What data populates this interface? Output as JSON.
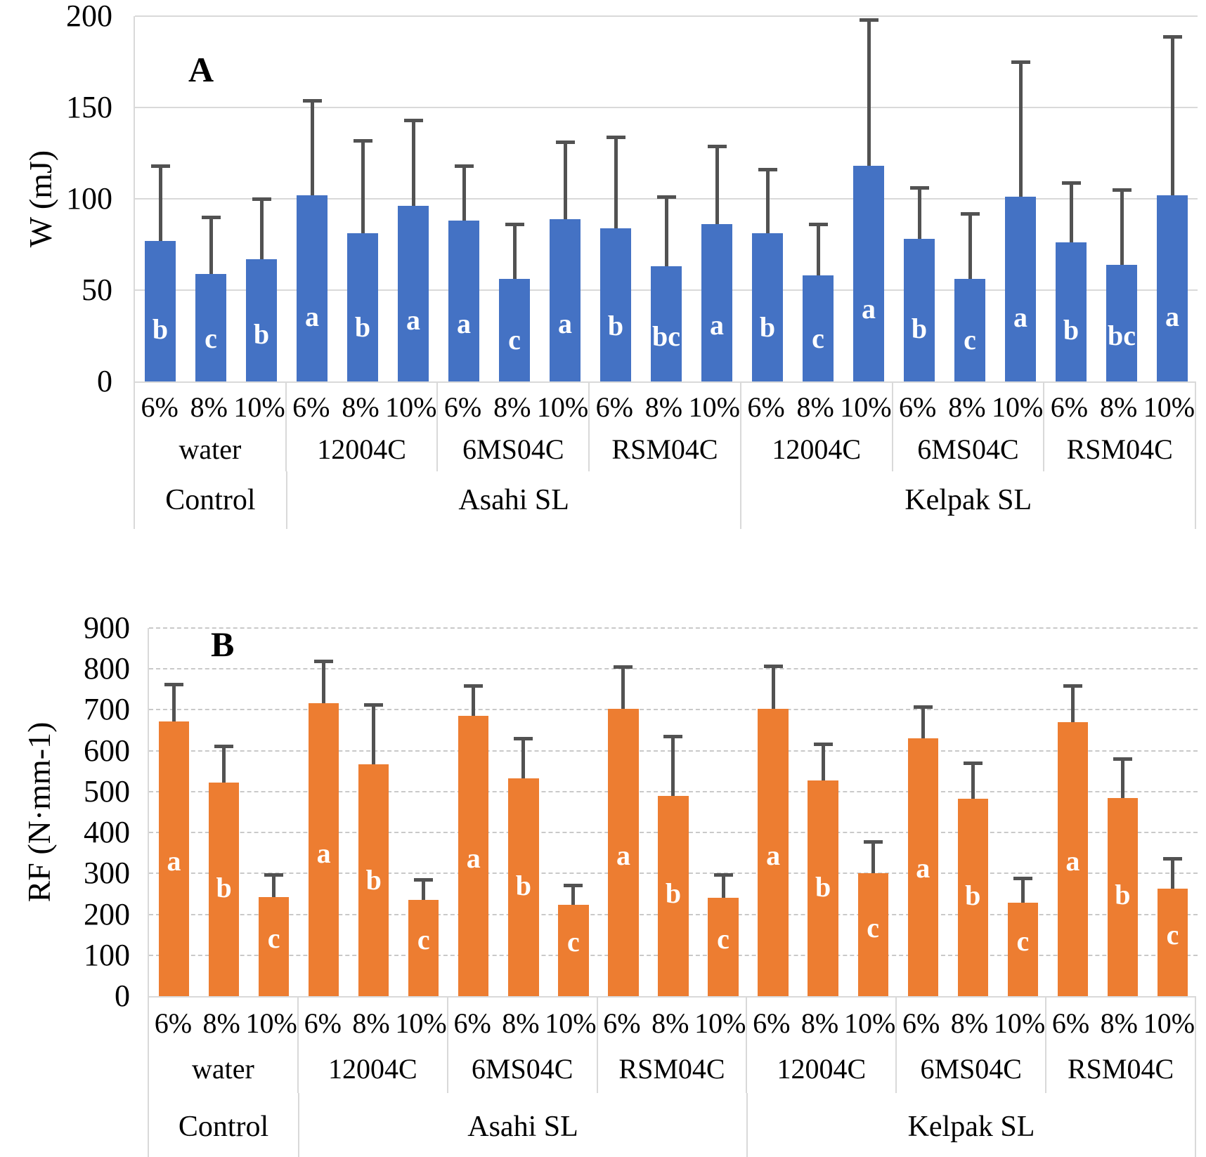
{
  "chart_data": [
    {
      "type": "bar",
      "panel_label": "A",
      "ylabel": "W (mJ)",
      "ylim": [
        0,
        200
      ],
      "yticks": [
        0,
        50,
        100,
        150,
        200
      ],
      "gridlines": "solid",
      "legend": "none",
      "bar_color": "#4472C4",
      "error_bar_color": "#525252",
      "letter_color": "#FFFFFF",
      "doses": [
        "6%",
        "8%",
        "10%"
      ],
      "groups": [
        {
          "label": "Control",
          "treatments": [
            {
              "label": "water",
              "bars": [
                {
                  "dose": "6%",
                  "value": 77,
                  "error_top": 118,
                  "letter": "b"
                },
                {
                  "dose": "8%",
                  "value": 59,
                  "error_top": 90,
                  "letter": "c"
                },
                {
                  "dose": "10%",
                  "value": 67,
                  "error_top": 100,
                  "letter": "b"
                }
              ]
            }
          ]
        },
        {
          "label": "Asahi SL",
          "treatments": [
            {
              "label": "12004C",
              "bars": [
                {
                  "dose": "6%",
                  "value": 102,
                  "error_top": 154,
                  "letter": "a"
                },
                {
                  "dose": "8%",
                  "value": 81,
                  "error_top": 132,
                  "letter": "b"
                },
                {
                  "dose": "10%",
                  "value": 96,
                  "error_top": 143,
                  "letter": "a"
                }
              ]
            },
            {
              "label": "6MS04C",
              "bars": [
                {
                  "dose": "6%",
                  "value": 88,
                  "error_top": 118,
                  "letter": "a"
                },
                {
                  "dose": "8%",
                  "value": 56,
                  "error_top": 86,
                  "letter": "c"
                },
                {
                  "dose": "10%",
                  "value": 89,
                  "error_top": 131,
                  "letter": "a"
                }
              ]
            },
            {
              "label": "RSM04C",
              "bars": [
                {
                  "dose": "6%",
                  "value": 84,
                  "error_top": 134,
                  "letter": "b"
                },
                {
                  "dose": "8%",
                  "value": 63,
                  "error_top": 101,
                  "letter": "bc"
                },
                {
                  "dose": "10%",
                  "value": 86,
                  "error_top": 129,
                  "letter": "a"
                }
              ]
            }
          ]
        },
        {
          "label": "Kelpak SL",
          "treatments": [
            {
              "label": "12004C",
              "bars": [
                {
                  "dose": "6%",
                  "value": 81,
                  "error_top": 116,
                  "letter": "b"
                },
                {
                  "dose": "8%",
                  "value": 58,
                  "error_top": 86,
                  "letter": "c"
                },
                {
                  "dose": "10%",
                  "value": 118,
                  "error_top": 198,
                  "letter": "a"
                }
              ]
            },
            {
              "label": "6MS04C",
              "bars": [
                {
                  "dose": "6%",
                  "value": 78,
                  "error_top": 106,
                  "letter": "b"
                },
                {
                  "dose": "8%",
                  "value": 56,
                  "error_top": 92,
                  "letter": "c"
                },
                {
                  "dose": "10%",
                  "value": 101,
                  "error_top": 175,
                  "letter": "a"
                }
              ]
            },
            {
              "label": "RSM04C",
              "bars": [
                {
                  "dose": "6%",
                  "value": 76,
                  "error_top": 109,
                  "letter": "b"
                },
                {
                  "dose": "8%",
                  "value": 64,
                  "error_top": 105,
                  "letter": "bc"
                },
                {
                  "dose": "10%",
                  "value": 102,
                  "error_top": 189,
                  "letter": "a"
                }
              ]
            }
          ]
        }
      ]
    },
    {
      "type": "bar",
      "panel_label": "B",
      "ylabel": "RF (N·mm-1)",
      "ylim": [
        0,
        900
      ],
      "yticks": [
        0,
        100,
        200,
        300,
        400,
        500,
        600,
        700,
        800,
        900
      ],
      "gridlines": "dashed",
      "legend": "none",
      "bar_color": "#ED7D31",
      "error_bar_color": "#525252",
      "letter_color": "#FFFFFF",
      "doses": [
        "6%",
        "8%",
        "10%"
      ],
      "groups": [
        {
          "label": "Control",
          "treatments": [
            {
              "label": "water",
              "bars": [
                {
                  "dose": "6%",
                  "value": 672,
                  "error_top": 763,
                  "letter": "a"
                },
                {
                  "dose": "8%",
                  "value": 523,
                  "error_top": 612,
                  "letter": "b"
                },
                {
                  "dose": "10%",
                  "value": 243,
                  "error_top": 297,
                  "letter": "c"
                }
              ]
            }
          ]
        },
        {
          "label": "Asahi SL",
          "treatments": [
            {
              "label": "12004C",
              "bars": [
                {
                  "dose": "6%",
                  "value": 716,
                  "error_top": 820,
                  "letter": "a"
                },
                {
                  "dose": "8%",
                  "value": 566,
                  "error_top": 712,
                  "letter": "b"
                },
                {
                  "dose": "10%",
                  "value": 236,
                  "error_top": 285,
                  "letter": "c"
                }
              ]
            },
            {
              "label": "6MS04C",
              "bars": [
                {
                  "dose": "6%",
                  "value": 686,
                  "error_top": 760,
                  "letter": "a"
                },
                {
                  "dose": "8%",
                  "value": 533,
                  "error_top": 630,
                  "letter": "b"
                },
                {
                  "dose": "10%",
                  "value": 223,
                  "error_top": 271,
                  "letter": "c"
                }
              ]
            },
            {
              "label": "RSM04C",
              "bars": [
                {
                  "dose": "6%",
                  "value": 703,
                  "error_top": 805,
                  "letter": "a"
                },
                {
                  "dose": "8%",
                  "value": 490,
                  "error_top": 635,
                  "letter": "b"
                },
                {
                  "dose": "10%",
                  "value": 240,
                  "error_top": 298,
                  "letter": "c"
                }
              ]
            }
          ]
        },
        {
          "label": "Kelpak SL",
          "treatments": [
            {
              "label": "12004C",
              "bars": [
                {
                  "dose": "6%",
                  "value": 703,
                  "error_top": 808,
                  "letter": "a"
                },
                {
                  "dose": "8%",
                  "value": 528,
                  "error_top": 616,
                  "letter": "b"
                },
                {
                  "dose": "10%",
                  "value": 300,
                  "error_top": 378,
                  "letter": "c"
                }
              ]
            },
            {
              "label": "6MS04C",
              "bars": [
                {
                  "dose": "6%",
                  "value": 631,
                  "error_top": 707,
                  "letter": "a"
                },
                {
                  "dose": "8%",
                  "value": 482,
                  "error_top": 570,
                  "letter": "b"
                },
                {
                  "dose": "10%",
                  "value": 228,
                  "error_top": 289,
                  "letter": "c"
                }
              ]
            },
            {
              "label": "RSM04C",
              "bars": [
                {
                  "dose": "6%",
                  "value": 670,
                  "error_top": 760,
                  "letter": "a"
                },
                {
                  "dose": "8%",
                  "value": 485,
                  "error_top": 580,
                  "letter": "b"
                },
                {
                  "dose": "10%",
                  "value": 263,
                  "error_top": 336,
                  "letter": "c"
                }
              ]
            }
          ]
        }
      ]
    }
  ]
}
